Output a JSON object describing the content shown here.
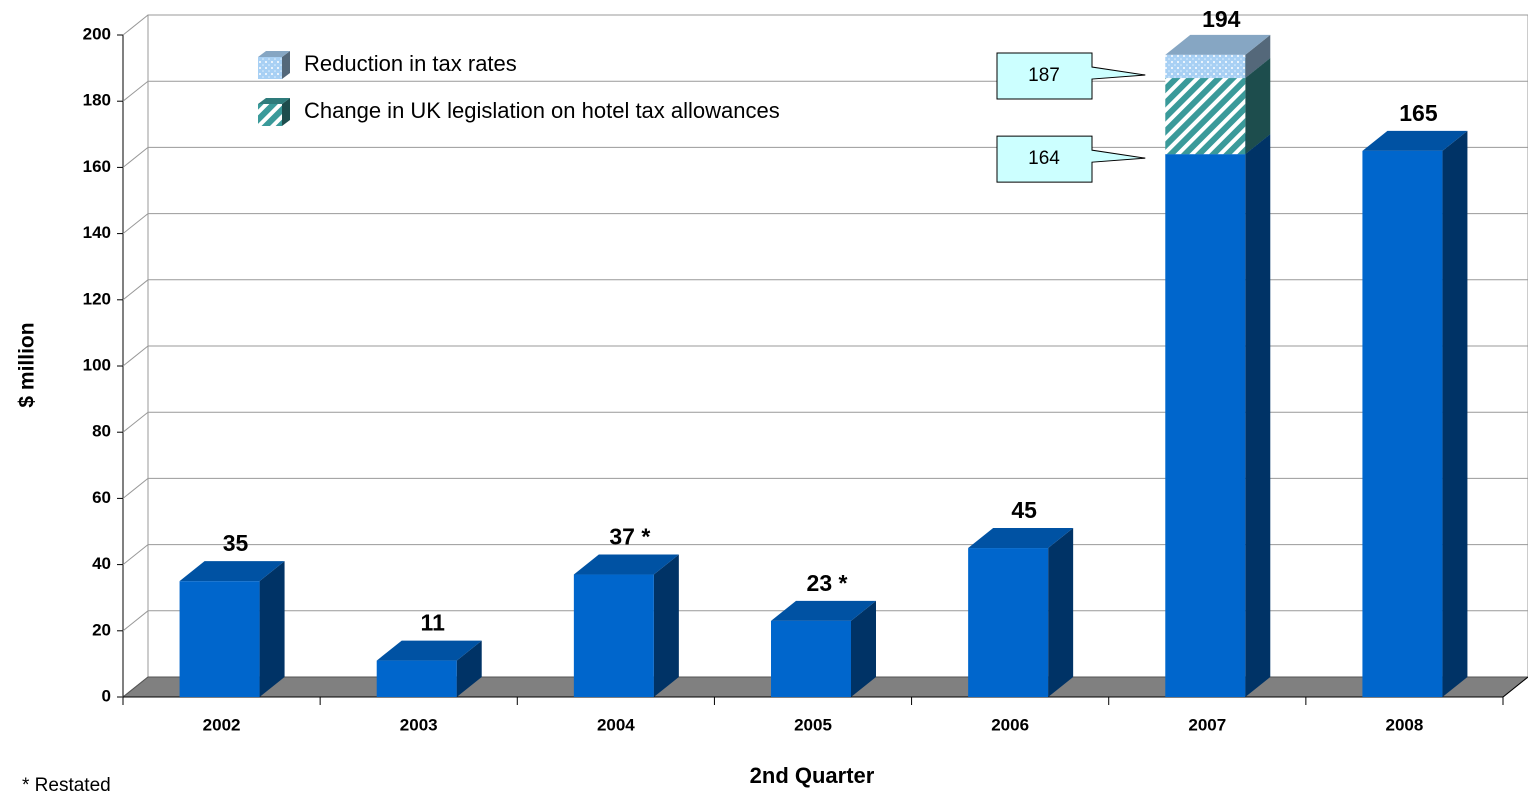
{
  "chart_data": {
    "type": "bar3d-stacked",
    "x_label": "2nd Quarter",
    "y_label": "$ million",
    "footnote": "*  Restated",
    "categories": [
      "2002",
      "2003",
      "2004",
      "2005",
      "2006",
      "2007",
      "2008"
    ],
    "series": [
      {
        "color": "#0066cc",
        "values": [
          35,
          11,
          37,
          23,
          45,
          164,
          165
        ],
        "value_labels": [
          "35",
          "11",
          "37 *",
          "23 *",
          "45",
          "164",
          "165"
        ]
      },
      {
        "name": "Change in UK legislation on hotel tax allowances",
        "color": "#3a9a9a",
        "values": [
          null,
          null,
          null,
          null,
          null,
          23,
          null
        ]
      },
      {
        "name": "Reduction in tax rates",
        "color": "#a8d0f4",
        "values": [
          null,
          null,
          null,
          null,
          null,
          7,
          null
        ]
      }
    ],
    "annotations": [
      {
        "value": 187,
        "label": "187"
      },
      {
        "value": 194,
        "label": "194"
      }
    ],
    "ylim": [
      0,
      200
    ],
    "yticks": [
      0,
      20,
      40,
      60,
      80,
      100,
      120,
      140,
      160,
      180,
      200
    ],
    "grid": true
  }
}
